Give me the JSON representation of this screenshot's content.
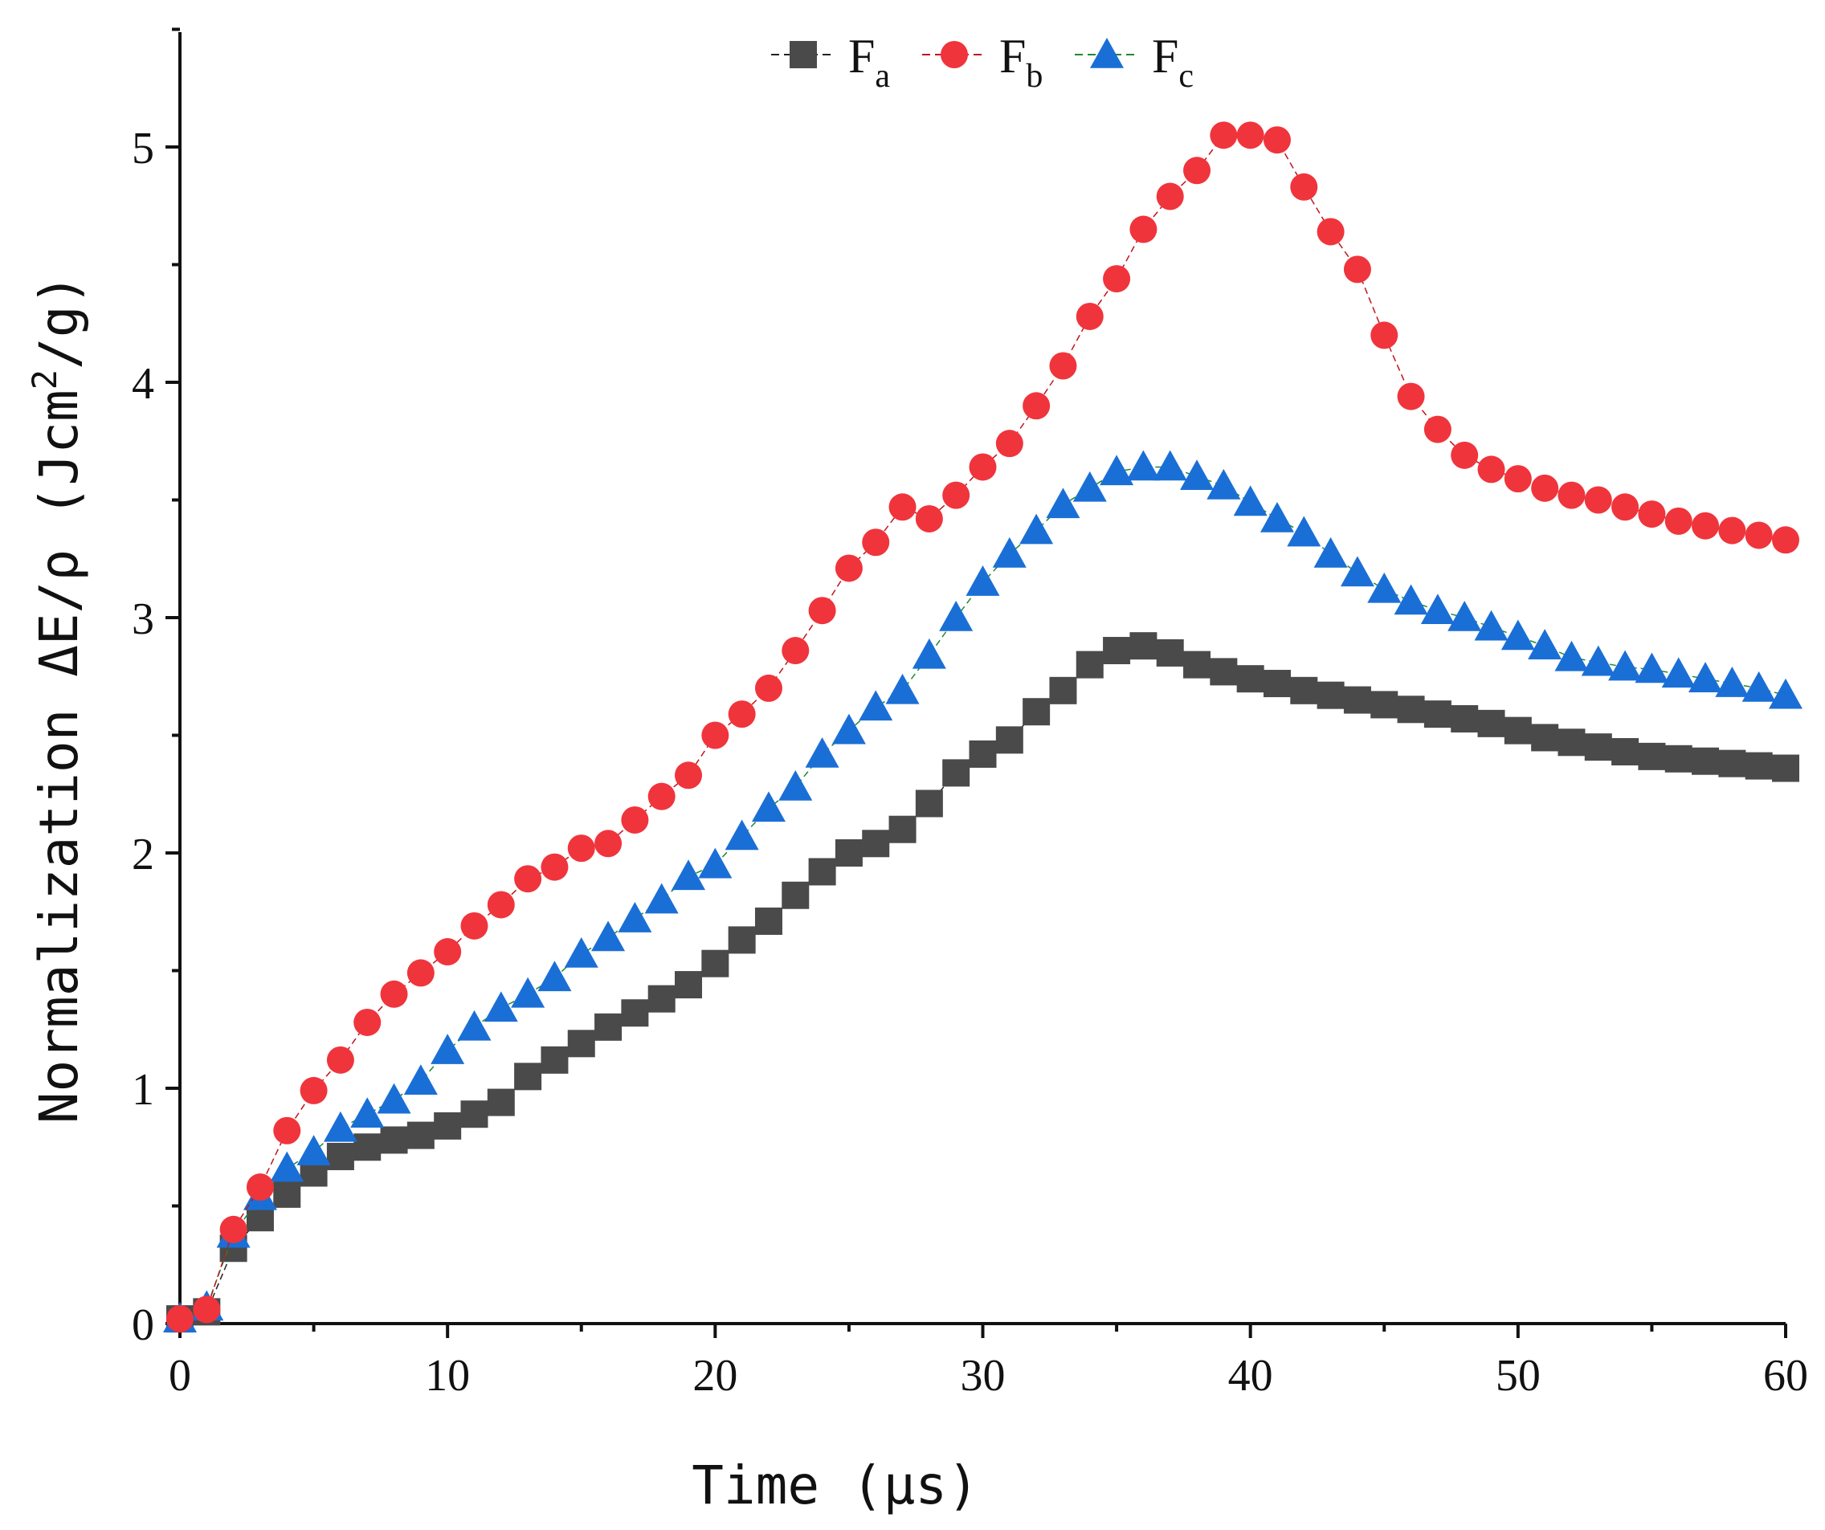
{
  "chart_data": {
    "type": "line",
    "title": "",
    "xlabel": "Time (μs)",
    "ylabel": "Normalization ΔE/ρ (Jcm²/g)",
    "ylabel_parts": {
      "main": "Normalization ΔE/ρ (Jcm",
      "sup": "2",
      "tail": "/g)"
    },
    "xlim": [
      0,
      60
    ],
    "ylim": [
      0,
      5.5
    ],
    "x_ticks": [
      "0",
      "10",
      "20",
      "30",
      "40",
      "50",
      "60"
    ],
    "y_ticks": [
      "0",
      "1",
      "2",
      "3",
      "4",
      "5"
    ],
    "grid": false,
    "legend_position": "top-center",
    "x": [
      0,
      1,
      2,
      3,
      4,
      5,
      6,
      7,
      8,
      9,
      10,
      11,
      12,
      13,
      14,
      15,
      16,
      17,
      18,
      19,
      20,
      21,
      22,
      23,
      24,
      25,
      26,
      27,
      28,
      29,
      30,
      31,
      32,
      33,
      34,
      35,
      36,
      37,
      38,
      39,
      40,
      41,
      42,
      43,
      44,
      45,
      46,
      47,
      48,
      49,
      50,
      51,
      52,
      53,
      54,
      55,
      56,
      57,
      58,
      59,
      60
    ],
    "series": [
      {
        "name": "F_a",
        "label_main": "F",
        "label_sub": "a",
        "color": "#4a4a4a",
        "marker": "square",
        "line_color": "#222222",
        "values": [
          0.02,
          0.05,
          0.32,
          0.45,
          0.55,
          0.64,
          0.71,
          0.75,
          0.78,
          0.8,
          0.84,
          0.89,
          0.94,
          1.05,
          1.12,
          1.19,
          1.26,
          1.32,
          1.38,
          1.44,
          1.53,
          1.63,
          1.71,
          1.82,
          1.92,
          2.0,
          2.04,
          2.1,
          2.21,
          2.34,
          2.42,
          2.48,
          2.6,
          2.69,
          2.8,
          2.86,
          2.88,
          2.85,
          2.8,
          2.77,
          2.74,
          2.72,
          2.69,
          2.67,
          2.65,
          2.63,
          2.61,
          2.59,
          2.57,
          2.55,
          2.52,
          2.49,
          2.47,
          2.45,
          2.43,
          2.41,
          2.4,
          2.39,
          2.38,
          2.37,
          2.36
        ]
      },
      {
        "name": "F_b",
        "label_main": "F",
        "label_sub": "b",
        "color": "#f0343c",
        "marker": "circle",
        "line_color": "#c0141c",
        "values": [
          0.02,
          0.06,
          0.4,
          0.58,
          0.82,
          0.99,
          1.12,
          1.28,
          1.4,
          1.49,
          1.58,
          1.69,
          1.78,
          1.89,
          1.94,
          2.02,
          2.04,
          2.14,
          2.24,
          2.33,
          2.5,
          2.59,
          2.7,
          2.86,
          3.03,
          3.21,
          3.32,
          3.47,
          3.42,
          3.52,
          3.64,
          3.74,
          3.9,
          4.07,
          4.28,
          4.44,
          4.65,
          4.79,
          4.9,
          5.05,
          5.05,
          5.03,
          4.83,
          4.64,
          4.48,
          4.2,
          3.94,
          3.8,
          3.69,
          3.63,
          3.59,
          3.55,
          3.52,
          3.5,
          3.47,
          3.44,
          3.41,
          3.39,
          3.37,
          3.35,
          3.33
        ]
      },
      {
        "name": "F_c",
        "label_main": "F",
        "label_sub": "c",
        "color": "#1a6fd6",
        "marker": "triangle",
        "line_color": "#1e8a2e",
        "values": [
          0.02,
          0.07,
          0.38,
          0.54,
          0.66,
          0.73,
          0.83,
          0.89,
          0.95,
          1.03,
          1.16,
          1.26,
          1.34,
          1.4,
          1.47,
          1.57,
          1.64,
          1.72,
          1.8,
          1.9,
          1.95,
          2.07,
          2.19,
          2.28,
          2.42,
          2.52,
          2.62,
          2.69,
          2.84,
          3.0,
          3.15,
          3.27,
          3.37,
          3.48,
          3.55,
          3.62,
          3.64,
          3.64,
          3.6,
          3.56,
          3.49,
          3.42,
          3.36,
          3.27,
          3.19,
          3.12,
          3.07,
          3.03,
          3.0,
          2.96,
          2.92,
          2.88,
          2.83,
          2.81,
          2.79,
          2.78,
          2.76,
          2.74,
          2.72,
          2.7,
          2.67
        ]
      }
    ]
  }
}
